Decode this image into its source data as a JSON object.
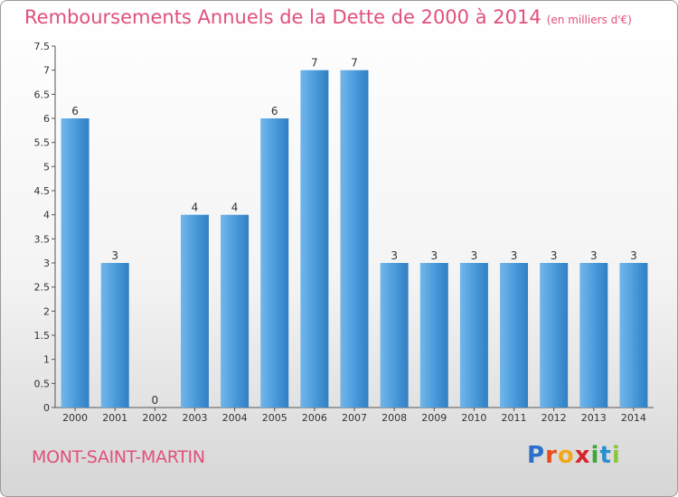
{
  "header": {
    "title": "Remboursements Annuels de la Dette de 2000 à 2014",
    "unit": "(en milliers d'€)"
  },
  "footer": {
    "city": "MONT-SAINT-MARTIN",
    "logo_letters": [
      "P",
      "r",
      "o",
      "x",
      "i",
      "t",
      "i"
    ],
    "logo_colors": [
      "#2a6fc9",
      "#e94c1e",
      "#f2a81d",
      "#d6252a",
      "#3fa535",
      "#2a8fd0",
      "#8cc63f"
    ]
  },
  "colors": {
    "bar": "#4f9fde",
    "bar_dark": "#2f7fc3",
    "bar_light": "#72b6ea",
    "text": "#333333",
    "title": "#e0507a"
  },
  "chart_data": {
    "type": "bar",
    "categories": [
      "2000",
      "2001",
      "2002",
      "2003",
      "2004",
      "2005",
      "2006",
      "2007",
      "2008",
      "2009",
      "2010",
      "2011",
      "2012",
      "2013",
      "2014"
    ],
    "values": [
      6,
      3,
      0,
      4,
      4,
      6,
      7,
      7,
      3,
      3,
      3,
      3,
      3,
      3,
      3
    ],
    "data_labels": [
      "6",
      "3",
      "0",
      "4",
      "4",
      "6",
      "7",
      "7",
      "3",
      "3",
      "3",
      "3",
      "3",
      "3",
      "3"
    ],
    "yticks": [
      "0",
      "0.5",
      "1",
      "1.5",
      "2",
      "2.5",
      "3",
      "3.5",
      "4",
      "4.5",
      "5",
      "5.5",
      "6",
      "6.5",
      "7",
      "7.5"
    ],
    "ylim": [
      0,
      7.5
    ],
    "title": "Remboursements Annuels de la Dette de 2000 à 2014",
    "xlabel": "",
    "ylabel": "",
    "grid": false,
    "legend": "none"
  }
}
